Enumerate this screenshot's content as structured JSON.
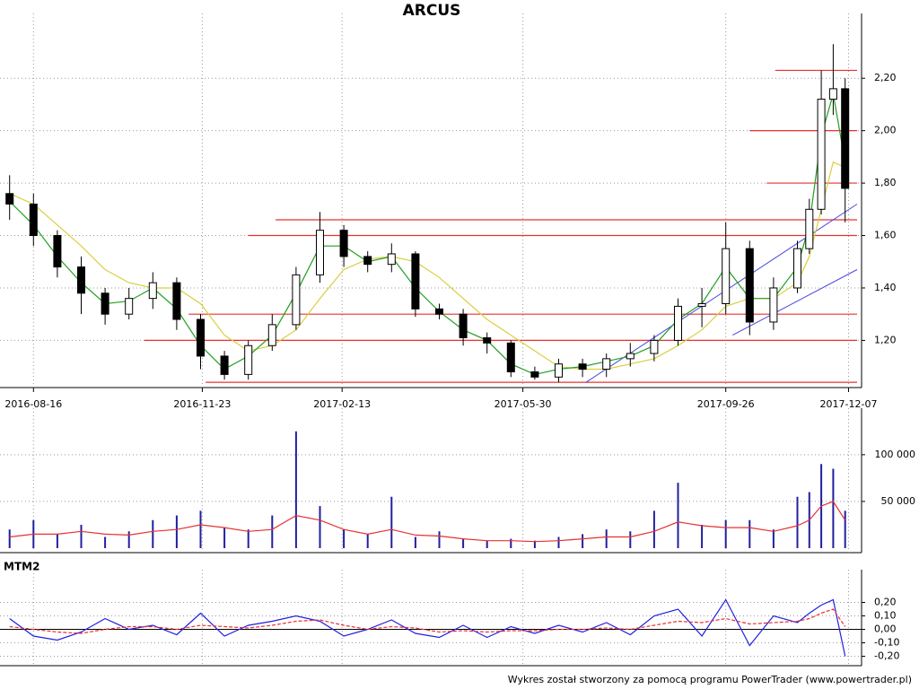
{
  "chart_data": [
    {
      "type": "candlestick",
      "title": "ARCUS",
      "x": [
        "2016-08-02",
        "2016-08-16",
        "2016-08-30",
        "2016-09-13",
        "2016-09-27",
        "2016-10-11",
        "2016-10-25",
        "2016-11-08",
        "2016-11-22",
        "2016-12-06",
        "2016-12-20",
        "2017-01-03",
        "2017-01-17",
        "2017-01-31",
        "2017-02-14",
        "2017-02-28",
        "2017-03-14",
        "2017-03-28",
        "2017-04-11",
        "2017-04-25",
        "2017-05-09",
        "2017-05-23",
        "2017-06-06",
        "2017-06-20",
        "2017-07-04",
        "2017-07-18",
        "2017-08-01",
        "2017-08-15",
        "2017-08-29",
        "2017-09-12",
        "2017-09-26",
        "2017-10-10",
        "2017-10-24",
        "2017-11-07",
        "2017-11-14",
        "2017-11-21",
        "2017-11-28",
        "2017-12-05"
      ],
      "open": [
        1.76,
        1.72,
        1.6,
        1.48,
        1.38,
        1.3,
        1.36,
        1.42,
        1.28,
        1.14,
        1.07,
        1.18,
        1.26,
        1.45,
        1.62,
        1.52,
        1.49,
        1.53,
        1.32,
        1.3,
        1.21,
        1.19,
        1.08,
        1.06,
        1.11,
        1.09,
        1.13,
        1.15,
        1.2,
        1.33,
        1.34,
        1.55,
        1.27,
        1.4,
        1.55,
        1.7,
        2.12,
        2.16
      ],
      "high": [
        1.83,
        1.76,
        1.62,
        1.52,
        1.4,
        1.4,
        1.46,
        1.44,
        1.3,
        1.16,
        1.2,
        1.3,
        1.48,
        1.69,
        1.64,
        1.54,
        1.57,
        1.54,
        1.34,
        1.32,
        1.23,
        1.2,
        1.1,
        1.13,
        1.13,
        1.15,
        1.19,
        1.22,
        1.36,
        1.4,
        1.65,
        1.58,
        1.44,
        1.58,
        1.74,
        2.23,
        2.33,
        2.2
      ],
      "low": [
        1.66,
        1.56,
        1.44,
        1.3,
        1.26,
        1.28,
        1.32,
        1.24,
        1.09,
        1.05,
        1.05,
        1.16,
        1.24,
        1.42,
        1.48,
        1.46,
        1.46,
        1.29,
        1.28,
        1.18,
        1.15,
        1.06,
        1.05,
        1.04,
        1.06,
        1.06,
        1.1,
        1.12,
        1.18,
        1.25,
        1.3,
        1.22,
        1.24,
        1.38,
        1.53,
        1.68,
        2.06,
        1.65
      ],
      "close": [
        1.72,
        1.6,
        1.48,
        1.38,
        1.3,
        1.36,
        1.42,
        1.28,
        1.14,
        1.07,
        1.18,
        1.26,
        1.45,
        1.62,
        1.52,
        1.49,
        1.53,
        1.32,
        1.3,
        1.21,
        1.19,
        1.08,
        1.06,
        1.11,
        1.09,
        1.13,
        1.15,
        1.2,
        1.33,
        1.34,
        1.55,
        1.27,
        1.4,
        1.55,
        1.7,
        2.12,
        2.16,
        1.78
      ],
      "series": [
        {
          "color": "#d8d040",
          "values": [
            1.76,
            1.72,
            1.64,
            1.56,
            1.47,
            1.42,
            1.4,
            1.4,
            1.34,
            1.22,
            1.16,
            1.18,
            1.24,
            1.36,
            1.47,
            1.51,
            1.52,
            1.5,
            1.44,
            1.36,
            1.28,
            1.22,
            1.16,
            1.1,
            1.09,
            1.09,
            1.11,
            1.13,
            1.18,
            1.24,
            1.33,
            1.36,
            1.36,
            1.42,
            1.52,
            1.7,
            1.88,
            1.86
          ]
        },
        {
          "color": "#20a020",
          "values": [
            1.73,
            1.64,
            1.52,
            1.42,
            1.34,
            1.35,
            1.4,
            1.32,
            1.18,
            1.09,
            1.14,
            1.22,
            1.38,
            1.56,
            1.56,
            1.5,
            1.52,
            1.4,
            1.31,
            1.24,
            1.2,
            1.11,
            1.07,
            1.09,
            1.1,
            1.12,
            1.14,
            1.18,
            1.28,
            1.34,
            1.48,
            1.36,
            1.36,
            1.48,
            1.64,
            1.98,
            2.14,
            1.88
          ]
        }
      ],
      "levels": [
        {
          "value": 1.04,
          "from": "2016-11-25"
        },
        {
          "value": 1.2,
          "from": "2016-10-20"
        },
        {
          "value": 1.3,
          "from": "2016-11-15"
        },
        {
          "value": 1.6,
          "from": "2016-12-20"
        },
        {
          "value": 1.66,
          "from": "2017-01-05"
        },
        {
          "value": 1.8,
          "from": "2017-10-20"
        },
        {
          "value": 2.0,
          "from": "2017-10-10"
        },
        {
          "value": 2.23,
          "from": "2017-10-25"
        }
      ],
      "level_color": "#e83030",
      "trendlines": [
        {
          "x": [
            "2017-07-06",
            "2017-12-12"
          ],
          "y": [
            1.04,
            1.72
          ]
        },
        {
          "x": [
            "2017-09-30",
            "2017-12-12"
          ],
          "y": [
            1.22,
            1.47
          ]
        }
      ],
      "trend_color": "#4848e0",
      "xlim": [
        "2016-07-30",
        "2017-12-12"
      ],
      "xticks": [
        "2016-08-16",
        "2016-11-23",
        "2017-02-13",
        "2017-05-30",
        "2017-09-26",
        "2017-12-07"
      ],
      "ylim": [
        1.02,
        2.43
      ],
      "yticks": [
        {
          "value": 1.2,
          "label": "1,20"
        },
        {
          "value": 1.4,
          "label": "1,40"
        },
        {
          "value": 1.6,
          "label": "1,60"
        },
        {
          "value": 1.8,
          "label": "1,80"
        },
        {
          "value": 2.0,
          "label": "2,00"
        },
        {
          "value": 2.2,
          "label": "2,20"
        }
      ],
      "grid": true
    },
    {
      "type": "bar",
      "values": [
        20000,
        30000,
        15000,
        25000,
        12000,
        18000,
        30000,
        35000,
        40000,
        22000,
        20000,
        35000,
        125000,
        45000,
        20000,
        15000,
        55000,
        12000,
        18000,
        10000,
        8000,
        10000,
        8000,
        12000,
        15000,
        20000,
        18000,
        40000,
        70000,
        25000,
        30000,
        30000,
        20000,
        55000,
        60000,
        90000,
        85000,
        40000
      ],
      "color": "#2020a0",
      "series": [
        {
          "color": "#e83030",
          "values": [
            12000,
            15000,
            15000,
            18000,
            15000,
            14000,
            18000,
            20000,
            25000,
            22000,
            18000,
            20000,
            35000,
            30000,
            20000,
            15000,
            20000,
            14000,
            13000,
            10000,
            8000,
            8000,
            7000,
            8000,
            10000,
            12000,
            12000,
            18000,
            28000,
            24000,
            22000,
            22000,
            18000,
            24000,
            30000,
            45000,
            50000,
            30000
          ]
        }
      ],
      "ylim": [
        0,
        145000
      ],
      "yticks": [
        {
          "value": 50000,
          "label": "50 000"
        },
        {
          "value": 100000,
          "label": "100 000"
        }
      ],
      "grid": true
    },
    {
      "type": "line",
      "title": "MTM2",
      "series": [
        {
          "color": "#2020e0",
          "values": [
            0.08,
            -0.05,
            -0.08,
            -0.02,
            0.08,
            0.0,
            0.03,
            -0.04,
            0.12,
            -0.05,
            0.03,
            0.06,
            0.1,
            0.06,
            -0.05,
            0.0,
            0.07,
            -0.03,
            -0.06,
            0.03,
            -0.06,
            0.02,
            -0.03,
            0.03,
            -0.02,
            0.05,
            -0.04,
            0.1,
            0.15,
            -0.05,
            0.22,
            -0.12,
            0.1,
            0.05,
            0.12,
            0.18,
            0.22,
            -0.2
          ]
        },
        {
          "color": "#e83030",
          "dashed": true,
          "values": [
            0.02,
            0.0,
            -0.02,
            -0.03,
            0.0,
            0.02,
            0.02,
            0.0,
            0.03,
            0.02,
            0.01,
            0.03,
            0.06,
            0.07,
            0.03,
            0.0,
            0.02,
            0.01,
            -0.02,
            -0.01,
            -0.02,
            -0.01,
            -0.01,
            0.0,
            0.0,
            0.01,
            0.0,
            0.03,
            0.06,
            0.05,
            0.08,
            0.04,
            0.05,
            0.06,
            0.08,
            0.12,
            0.15,
            0.02
          ]
        }
      ],
      "ylim": [
        -0.27,
        0.41
      ],
      "yticks": [
        {
          "value": -0.2,
          "label": "-0,20"
        },
        {
          "value": -0.1,
          "label": "-0,10"
        },
        {
          "value": 0,
          "label": "0,00"
        },
        {
          "value": 0.1,
          "label": "0,10"
        },
        {
          "value": 0.2,
          "label": "0,20"
        }
      ],
      "zero_line": 0,
      "grid": true
    }
  ],
  "footer": "Wykres został stworzony za pomocą programu PowerTrader (www.powertrader.pl)"
}
